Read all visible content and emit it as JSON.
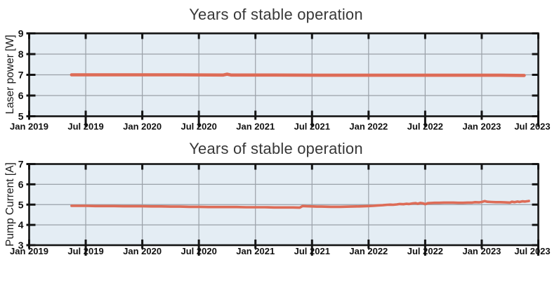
{
  "figure": {
    "background": "#ffffff",
    "description": "Two stacked time-series line charts of laser long-term stability"
  },
  "chart_data": [
    {
      "type": "line",
      "title": "Years of stable operation",
      "xlabel": "",
      "ylabel": "Laser power [W]",
      "ylim": [
        5,
        9
      ],
      "y_ticks": [
        5,
        6,
        7,
        8,
        9
      ],
      "x_tick_months": [
        0,
        6,
        12,
        18,
        24,
        30,
        36,
        42,
        48,
        54
      ],
      "x_tick_labels": [
        "Jan 2019",
        "Jul 2019",
        "Jan 2020",
        "Jul 2020",
        "Jan 2021",
        "Jul 2021",
        "Jan 2022",
        "Jul 2022",
        "Jan 2023",
        "Jul 2023"
      ],
      "grid": true,
      "legend": false,
      "colors": {
        "line": "#dd6c57",
        "plot_bg": "#e4edf4",
        "grid": "#9aa1a8",
        "frame": "#141414",
        "text": "#111111",
        "title": "#383838"
      },
      "series": [
        {
          "name": "Laser power",
          "x": [
            4.5,
            8,
            12,
            16,
            20.6,
            21,
            21.4,
            26,
            31,
            36,
            41,
            46,
            50,
            52.5
          ],
          "y": [
            7.0,
            7.0,
            7.0,
            7.0,
            6.99,
            7.03,
            6.99,
            6.99,
            6.98,
            6.98,
            6.98,
            6.98,
            6.98,
            6.97
          ]
        }
      ]
    },
    {
      "type": "line",
      "title": "Years of stable operation",
      "xlabel": "",
      "ylabel": "Pump Current [A]",
      "ylim": [
        3,
        7
      ],
      "y_ticks": [
        3,
        4,
        5,
        6,
        7
      ],
      "x_tick_months": [
        0,
        6,
        12,
        18,
        24,
        30,
        36,
        42,
        48,
        54
      ],
      "x_tick_labels": [
        "Jan 2019",
        "Jul 2019",
        "Jan 2020",
        "Jul 2020",
        "Jan 2021",
        "Jul 2021",
        "Jan 2022",
        "Jul 2022",
        "Jan 2023",
        "Jul 2023"
      ],
      "grid": true,
      "legend": false,
      "colors": {
        "line": "#dd6c57",
        "plot_bg": "#e4edf4",
        "grid": "#9aa1a8",
        "frame": "#141414",
        "text": "#111111",
        "title": "#383838"
      },
      "series": [
        {
          "name": "Pump current",
          "x": [
            4.5,
            5,
            6,
            7,
            8,
            9,
            10,
            11,
            12,
            13,
            14,
            15,
            16,
            17,
            18,
            19,
            20,
            21,
            22,
            23,
            24,
            25,
            26,
            27,
            28,
            28.7,
            29,
            29.4,
            30,
            30.5,
            31,
            32,
            33,
            34,
            35,
            35.5,
            36,
            36.5,
            37,
            37.5,
            38,
            38.3,
            38.6,
            39,
            39.3,
            39.7,
            40,
            40.3,
            40.7,
            41,
            41.2,
            41.5,
            41.8,
            42,
            42.3,
            42.7,
            43,
            43.5,
            44,
            44.5,
            45,
            45.5,
            46,
            46.5,
            47,
            47.3,
            47.7,
            48,
            48.3,
            48.6,
            49,
            49.5,
            50,
            50.5,
            51,
            51.2,
            51.5,
            51.8,
            52,
            52.3,
            52.6,
            53
          ],
          "y": [
            4.94,
            4.94,
            4.94,
            4.93,
            4.93,
            4.93,
            4.92,
            4.92,
            4.92,
            4.91,
            4.91,
            4.9,
            4.9,
            4.89,
            4.89,
            4.88,
            4.88,
            4.88,
            4.88,
            4.87,
            4.87,
            4.87,
            4.86,
            4.86,
            4.86,
            4.85,
            4.93,
            4.92,
            4.91,
            4.9,
            4.9,
            4.89,
            4.89,
            4.9,
            4.91,
            4.92,
            4.93,
            4.94,
            4.96,
            4.97,
            4.99,
            5.0,
            4.99,
            5.01,
            5.03,
            5.02,
            5.04,
            5.03,
            5.06,
            5.07,
            5.04,
            5.08,
            5.06,
            5.02,
            5.07,
            5.08,
            5.09,
            5.09,
            5.1,
            5.1,
            5.1,
            5.09,
            5.09,
            5.1,
            5.1,
            5.12,
            5.11,
            5.13,
            5.17,
            5.14,
            5.13,
            5.12,
            5.12,
            5.11,
            5.1,
            5.14,
            5.12,
            5.15,
            5.13,
            5.16,
            5.15,
            5.18
          ]
        }
      ]
    }
  ]
}
